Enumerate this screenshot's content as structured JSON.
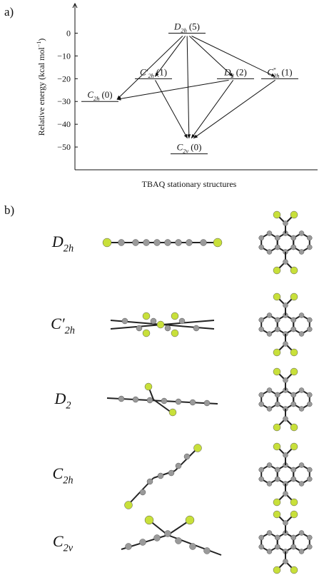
{
  "panel_a": {
    "label": "a)",
    "ylabel": {
      "text": "Relative energy (kcal mol",
      "sup": "−1",
      "close": ")"
    },
    "xlabel": "TBAQ stationary structures",
    "ylim": [
      -60,
      13
    ],
    "yticks": [
      {
        "value": 0,
        "label": "0"
      },
      {
        "value": -10,
        "label": "−10"
      },
      {
        "value": -20,
        "label": "−20"
      },
      {
        "value": -30,
        "label": "−30"
      },
      {
        "value": -40,
        "label": "−40"
      },
      {
        "value": -50,
        "label": "−50"
      }
    ],
    "levels": [
      {
        "symbol": "D",
        "sub": "2h",
        "count": "(5)",
        "energy": 0
      },
      {
        "symbol": "C′",
        "sub": "2h",
        "count": "(1)",
        "energy": -20
      },
      {
        "symbol": "D",
        "sub": "2",
        "count": "(2)",
        "energy": -20
      },
      {
        "symbol": "C",
        "sup": "*",
        "sub": "2h",
        "count": "(1)",
        "energy": -20
      },
      {
        "symbol": "C",
        "sub": "2h",
        "count": "(0)",
        "energy": -30
      },
      {
        "symbol": "C",
        "sub": "2v",
        "count": "(0)",
        "energy": -53
      }
    ]
  },
  "panel_b": {
    "label": "b)",
    "rows": [
      {
        "symbol": "D",
        "sub": "2h"
      },
      {
        "symbol": "C′",
        "sub": "2h"
      },
      {
        "symbol": "D",
        "sub": "2"
      },
      {
        "symbol": "C",
        "sub": "2h"
      },
      {
        "symbol": "C",
        "sub": "2v"
      }
    ]
  }
}
